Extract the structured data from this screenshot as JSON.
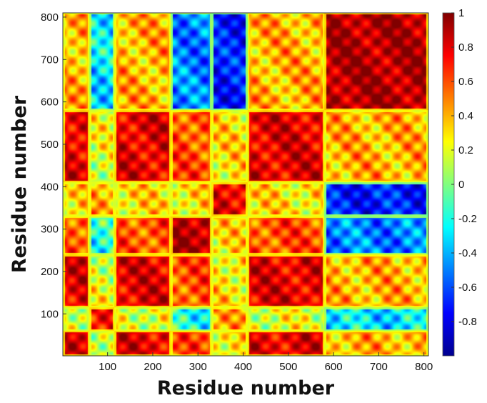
{
  "chart_data": {
    "type": "heatmap",
    "title": "",
    "xlabel": "Residue number",
    "ylabel": "Residue number",
    "xlim": [
      1,
      810
    ],
    "ylim": [
      1,
      810
    ],
    "xticks": [
      100,
      200,
      300,
      400,
      500,
      600,
      700,
      800
    ],
    "yticks": [
      100,
      200,
      300,
      400,
      500,
      600,
      700,
      800
    ],
    "colorbar": {
      "colormap": "jet",
      "range": [
        -1,
        1
      ],
      "ticks": [
        1,
        0.8,
        0.6,
        0.4,
        0.2,
        0,
        -0.2,
        -0.4,
        -0.6,
        -0.8
      ]
    },
    "grid": false,
    "structure": {
      "description_blocks_from_matrix": true,
      "domain_boundaries": [
        1,
        60,
        115,
        240,
        330,
        410,
        580,
        810
      ],
      "domain_group": [
        0,
        1,
        0,
        2,
        3,
        0,
        4
      ],
      "group_correlation": [
        [
          0.8,
          0.2,
          0.6,
          0.3,
          0.4
        ],
        [
          0.2,
          0.7,
          -0.2,
          0.4,
          -0.3
        ],
        [
          0.6,
          -0.2,
          0.9,
          0.3,
          -0.5
        ],
        [
          0.3,
          0.4,
          0.3,
          0.8,
          -0.7
        ],
        [
          0.4,
          -0.3,
          -0.5,
          -0.7,
          0.9
        ]
      ]
    }
  }
}
